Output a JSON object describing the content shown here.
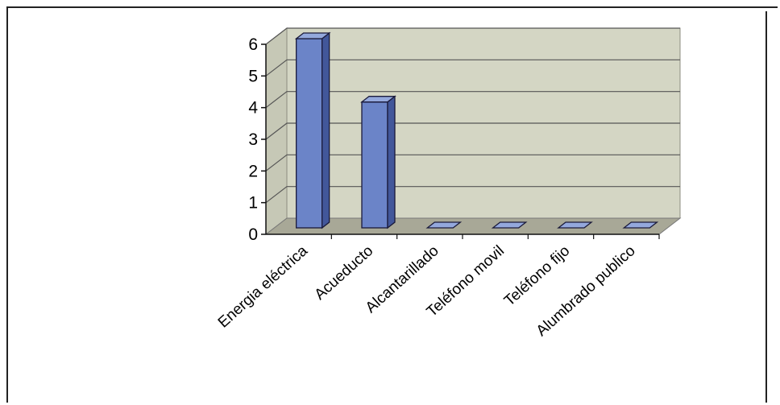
{
  "chart_data": {
    "type": "bar",
    "title": "",
    "xlabel": "",
    "ylabel": "",
    "categories": [
      "Energia eléctrica",
      "Acueducto",
      "Alcantarillado",
      "Teléfono movil",
      "Teléfono fijo",
      "Alumbrado publico"
    ],
    "values": [
      6,
      4,
      0,
      0,
      0,
      0
    ],
    "ylim": [
      0,
      6
    ],
    "yticks": [
      "0",
      "1",
      "2",
      "3",
      "4",
      "5",
      "6"
    ],
    "grid": true,
    "legend": "none",
    "three_d": true,
    "colors": {
      "bar_front": "#6b84c8",
      "bar_top": "#94a8dc",
      "bar_side": "#42579a",
      "wall": "#d4d6c4",
      "floor": "#a8a897",
      "gridline": "#555555"
    }
  }
}
